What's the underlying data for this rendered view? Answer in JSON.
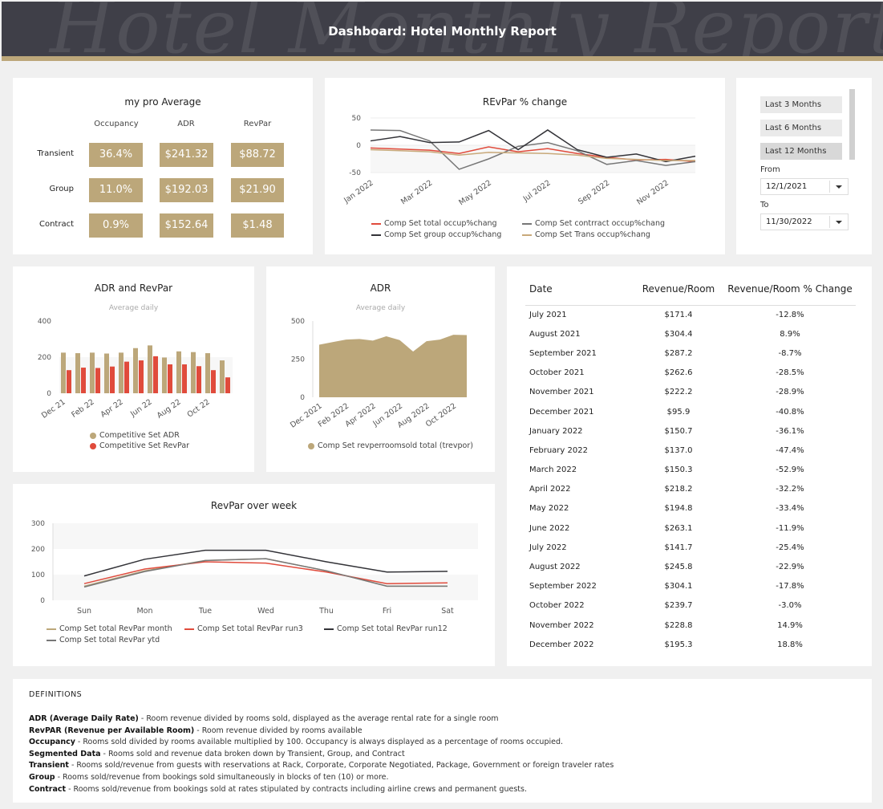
{
  "header": {
    "title": "Dashboard: Hotel Monthly Report",
    "watermark": "Hotel Monthly Report"
  },
  "kpi": {
    "title": "my pro Average",
    "columns": [
      "Occupancy",
      "ADR",
      "RevPar"
    ],
    "rows": [
      {
        "label": "Transient",
        "values": [
          "36.4%",
          "$241.32",
          "$88.72"
        ]
      },
      {
        "label": "Group",
        "values": [
          "11.0%",
          "$192.03",
          "$21.90"
        ]
      },
      {
        "label": "Contract",
        "values": [
          "0.9%",
          "$152.64",
          "$1.48"
        ]
      }
    ]
  },
  "filters": {
    "options": [
      "Last 3 Months",
      "Last 6 Months",
      "Last 12 Months"
    ],
    "selected": "Last 12 Months",
    "from_label": "From",
    "from_value": "12/1/2021",
    "to_label": "To",
    "to_value": "11/30/2022"
  },
  "colors": {
    "gold": "#bca77a",
    "red": "#e04b3c",
    "dark": "#333338",
    "gray": "#777777",
    "tan": "#c8a97a"
  },
  "revenue_table": {
    "headers": [
      "Date",
      "Revenue/Room",
      "Revenue/Room % Change"
    ],
    "rows": [
      [
        "July 2021",
        "$171.4",
        "-12.8%"
      ],
      [
        "August 2021",
        "$304.4",
        "8.9%"
      ],
      [
        "September 2021",
        "$287.2",
        "-8.7%"
      ],
      [
        "October 2021",
        "$262.6",
        "-28.5%"
      ],
      [
        "November 2021",
        "$222.2",
        "-28.9%"
      ],
      [
        "December 2021",
        "$95.9",
        "-40.8%"
      ],
      [
        "January 2022",
        "$150.7",
        "-36.1%"
      ],
      [
        "February 2022",
        "$137.0",
        "-47.4%"
      ],
      [
        "March 2022",
        "$150.3",
        "-52.9%"
      ],
      [
        "April 2022",
        "$218.2",
        "-32.2%"
      ],
      [
        "May 2022",
        "$194.8",
        "-33.4%"
      ],
      [
        "June 2022",
        "$263.1",
        "-11.9%"
      ],
      [
        "July 2022",
        "$141.7",
        "-25.4%"
      ],
      [
        "August 2022",
        "$245.8",
        "-22.9%"
      ],
      [
        "September 2022",
        "$304.1",
        "-17.8%"
      ],
      [
        "October 2022",
        "$239.7",
        "-3.0%"
      ],
      [
        "November 2022",
        "$228.8",
        "14.9%"
      ],
      [
        "December 2022",
        "$195.3",
        "18.8%"
      ]
    ]
  },
  "definitions": {
    "title": "DEFINITIONS",
    "items": [
      {
        "term": "ADR (Average Daily Rate)",
        "text": " - Room revenue divided by rooms sold, displayed as the average rental rate for a single room"
      },
      {
        "term": "RevPAR (Revenue per Available Room)",
        "text": " - Room revenue divided by rooms available"
      },
      {
        "term": "Occupancy",
        "text": " - Rooms sold divided by rooms available multiplied by 100.  Occupancy is always displayed as a percentage of rooms occupied."
      },
      {
        "term": "Segmented Data",
        "text": " - Rooms sold and revenue data broken down by Transient, Group, and Contract"
      },
      {
        "term": "Transient",
        "text": " - Rooms sold/revenue from guests with reservations at Rack, Corporate, Corporate Negotiated, Package, Government or foreign traveler rates"
      },
      {
        "term": "Group",
        "text": " - Rooms sold/revenue from bookings sold simultaneously in blocks of ten (10) or more."
      },
      {
        "term": "Contract",
        "text": " - Rooms sold/revenue from bookings sold at rates stipulated by contracts including airline crews and permanent guests."
      }
    ]
  },
  "chart_data": [
    {
      "id": "revpar-pct",
      "type": "line",
      "title": "REvPar % change",
      "x": [
        "Jan 2022",
        "Feb 2022",
        "Mar 2022",
        "Apr 2022",
        "May 2022",
        "Jun 2022",
        "Jul 2022",
        "Aug 2022",
        "Sep 2022",
        "Oct 2022",
        "Nov 2022",
        "Dec 2022"
      ],
      "tick_labels": [
        "Jan 2022",
        "Mar 2022",
        "May 2022",
        "Jul 2022",
        "Sep 2022",
        "Nov 2022"
      ],
      "yticks": [
        50,
        0,
        -50
      ],
      "ylim": [
        -50,
        50
      ],
      "series": [
        {
          "name": "Comp Set total occup%chang",
          "color": "#e04b3c",
          "values": [
            -5,
            -7,
            -9,
            -15,
            -3,
            -12,
            -6,
            -15,
            -22,
            -27,
            -26,
            -30
          ]
        },
        {
          "name": "Comp Set contrract occup%chang",
          "color": "#777777",
          "values": [
            28,
            27,
            8,
            -44,
            -25,
            -2,
            5,
            -10,
            -35,
            -28,
            -37,
            -30
          ]
        },
        {
          "name": "Comp Set group occup%chang",
          "color": "#333338",
          "values": [
            8,
            16,
            5,
            6,
            27,
            -8,
            28,
            -8,
            -22,
            -16,
            -30,
            -20
          ]
        },
        {
          "name": "Comp Set Trans occup%chang",
          "color": "#c8a97a",
          "values": [
            -8,
            -10,
            -12,
            -18,
            -13,
            -14,
            -15,
            -18,
            -24,
            -26,
            -28,
            -28
          ]
        }
      ],
      "legend": "bottom"
    },
    {
      "id": "adr-revpar",
      "type": "bar",
      "title": "ADR and RevPar",
      "subtitle": "Average daily",
      "categories": [
        "Dec 21",
        "Jan 22",
        "Feb 22",
        "Mar 22",
        "Apr 22",
        "May 22",
        "Jun 22",
        "Jul 22",
        "Aug 22",
        "Sep 22",
        "Oct 22",
        "Nov 22"
      ],
      "tick_labels": [
        "Dec 21",
        "Feb 22",
        "Apr 22",
        "Jun 22",
        "Aug 22",
        "Oct 22"
      ],
      "yticks": [
        0,
        200,
        400
      ],
      "ylim": [
        0,
        400
      ],
      "series": [
        {
          "name": "Competitive Set ADR",
          "color": "#bca77a",
          "values": [
            225,
            222,
            225,
            220,
            225,
            250,
            265,
            198,
            232,
            228,
            222,
            182
          ]
        },
        {
          "name": "Competitive Set RevPar",
          "color": "#e04b3c",
          "values": [
            128,
            142,
            140,
            148,
            175,
            182,
            205,
            160,
            160,
            150,
            128,
            88
          ]
        }
      ],
      "legend": "bottom"
    },
    {
      "id": "adr-area",
      "type": "area",
      "title": "ADR",
      "subtitle": "Average daily",
      "x": [
        "Dec 2021",
        "Jan 2022",
        "Feb 2022",
        "Mar 2022",
        "Apr 2022",
        "May 2022",
        "Jun 2022",
        "Jul 2022",
        "Aug 2022",
        "Sep 2022",
        "Oct 2022",
        "Nov 2022"
      ],
      "tick_labels": [
        "Dec 2021",
        "Feb 2022",
        "Apr 2022",
        "Jun 2022",
        "Aug 2022",
        "Oct 2022"
      ],
      "yticks": [
        0,
        250,
        500
      ],
      "ylim": [
        0,
        500
      ],
      "series": [
        {
          "name": "Comp Set revperroomsold total (trevpor)",
          "color": "#bca77a",
          "values": [
            345,
            362,
            378,
            382,
            372,
            400,
            375,
            300,
            368,
            378,
            410,
            408
          ]
        }
      ],
      "legend": "bottom"
    },
    {
      "id": "revpar-week",
      "type": "line",
      "title": "RevPar over week",
      "categories": [
        "Sun",
        "Mon",
        "Tue",
        "Wed",
        "Thu",
        "Fri",
        "Sat"
      ],
      "yticks": [
        0,
        100,
        200,
        300
      ],
      "ylim": [
        0,
        300
      ],
      "series": [
        {
          "name": "Comp Set total RevPar month",
          "color": "#bca77a",
          "values": [
            55,
            115,
            155,
            162,
            115,
            55,
            55
          ]
        },
        {
          "name": "Comp Set total RevPar run3",
          "color": "#e04b3c",
          "values": [
            65,
            122,
            150,
            145,
            110,
            65,
            68
          ]
        },
        {
          "name": "Comp Set total RevPar run12",
          "color": "#333338",
          "values": [
            95,
            160,
            195,
            195,
            150,
            110,
            113
          ]
        },
        {
          "name": "Comp Set total RevPar ytd",
          "color": "#777777",
          "values": [
            52,
            112,
            155,
            162,
            115,
            55,
            55
          ]
        }
      ],
      "legend": "bottom"
    }
  ]
}
